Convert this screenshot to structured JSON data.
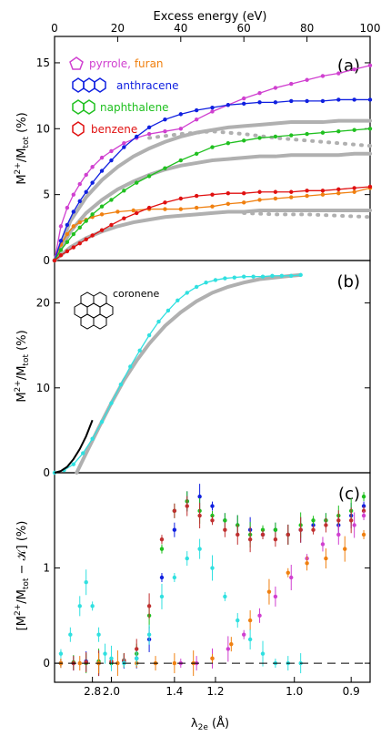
{
  "chart_data": [
    {
      "panel": "a",
      "type": "line",
      "tag": "(a)",
      "top_axis_label": "Excess energy (eV)",
      "top_axis_ticks": [
        "0",
        "20",
        "40",
        "60",
        "80",
        "100"
      ],
      "xlim": [
        0,
        100
      ],
      "ylim": [
        0,
        17
      ],
      "ylabel": "M2+/Mtot (%)",
      "y_ticks": [
        "0",
        "5",
        "10",
        "15"
      ],
      "legend": [
        {
          "label": "pyrrole, furan",
          "color": "#d040d0"
        },
        {
          "label": "anthracene",
          "color": "#1020e0"
        },
        {
          "label": "naphthalene",
          "color": "#20c020"
        },
        {
          "label": "benzene",
          "color": "#e01010"
        }
      ],
      "series": [
        {
          "name": "pyrrole, furan",
          "color": "#d040d0",
          "x": [
            0,
            2,
            4,
            6,
            8,
            10,
            12,
            15,
            18,
            22,
            26,
            30,
            35,
            40,
            45,
            50,
            55,
            60,
            65,
            70,
            75,
            80,
            85,
            90,
            95,
            100
          ],
          "y": [
            0,
            2.6,
            4.0,
            5.0,
            5.8,
            6.5,
            7.1,
            7.8,
            8.3,
            8.9,
            9.3,
            9.6,
            9.8,
            10.0,
            10.7,
            11.3,
            11.8,
            12.3,
            12.7,
            13.1,
            13.4,
            13.7,
            14.0,
            14.2,
            14.5,
            14.8
          ]
        },
        {
          "name": "pyrrole, furan (orange)",
          "color": "#f08010",
          "x": [
            0,
            2,
            4,
            6,
            8,
            10,
            12,
            15,
            20,
            25,
            30,
            35,
            40,
            45,
            50,
            55,
            60,
            65,
            70,
            75,
            80,
            85,
            90,
            95,
            100
          ],
          "y": [
            0,
            1.2,
            2.0,
            2.6,
            2.9,
            3.1,
            3.3,
            3.5,
            3.7,
            3.8,
            3.9,
            3.9,
            3.9,
            4.0,
            4.1,
            4.3,
            4.4,
            4.6,
            4.7,
            4.8,
            4.9,
            5.0,
            5.1,
            5.2,
            5.5
          ]
        },
        {
          "name": "anthracene",
          "color": "#1020e0",
          "x": [
            0,
            2,
            4,
            6,
            8,
            10,
            12,
            15,
            18,
            22,
            26,
            30,
            35,
            40,
            45,
            50,
            55,
            60,
            65,
            70,
            75,
            80,
            85,
            90,
            95,
            100
          ],
          "y": [
            0,
            1.5,
            2.7,
            3.7,
            4.5,
            5.2,
            5.9,
            6.8,
            7.6,
            8.6,
            9.4,
            10.1,
            10.7,
            11.1,
            11.4,
            11.6,
            11.8,
            11.9,
            12.0,
            12.0,
            12.1,
            12.1,
            12.1,
            12.2,
            12.2,
            12.2
          ]
        },
        {
          "name": "naphthalene",
          "color": "#20c020",
          "x": [
            0,
            2,
            4,
            6,
            8,
            10,
            12,
            15,
            18,
            22,
            26,
            30,
            35,
            40,
            45,
            50,
            55,
            60,
            65,
            70,
            75,
            80,
            85,
            90,
            95,
            100
          ],
          "y": [
            0,
            0.8,
            1.4,
            2.0,
            2.5,
            3.0,
            3.5,
            4.1,
            4.6,
            5.3,
            5.9,
            6.4,
            7.0,
            7.6,
            8.1,
            8.6,
            8.9,
            9.1,
            9.3,
            9.4,
            9.5,
            9.6,
            9.7,
            9.8,
            9.9,
            10.0
          ]
        },
        {
          "name": "benzene",
          "color": "#e01010",
          "x": [
            0,
            2,
            4,
            6,
            8,
            10,
            12,
            15,
            18,
            22,
            26,
            30,
            35,
            40,
            45,
            50,
            55,
            60,
            65,
            70,
            75,
            80,
            85,
            90,
            95,
            100
          ],
          "y": [
            0,
            0.4,
            0.7,
            1.0,
            1.3,
            1.6,
            1.9,
            2.3,
            2.7,
            3.2,
            3.6,
            4.0,
            4.4,
            4.7,
            4.9,
            5.0,
            5.1,
            5.1,
            5.2,
            5.2,
            5.2,
            5.3,
            5.3,
            5.4,
            5.5,
            5.6
          ]
        },
        {
          "name": "model anthracene",
          "color": "#aaaaaa",
          "x": [
            0,
            5,
            10,
            15,
            20,
            25,
            30,
            35,
            40,
            45,
            50,
            55,
            60,
            65,
            70,
            75,
            80,
            85,
            90,
            95,
            100
          ],
          "y": [
            0,
            3.0,
            4.8,
            6.1,
            7.1,
            7.9,
            8.5,
            9.0,
            9.4,
            9.7,
            9.9,
            10.1,
            10.2,
            10.3,
            10.4,
            10.5,
            10.5,
            10.5,
            10.6,
            10.6,
            10.6
          ]
        },
        {
          "name": "model naphthalene",
          "color": "#aaaaaa",
          "x": [
            0,
            5,
            10,
            15,
            20,
            25,
            30,
            35,
            40,
            45,
            50,
            55,
            60,
            65,
            70,
            75,
            80,
            85,
            90,
            95,
            100
          ],
          "y": [
            0,
            2.2,
            3.6,
            4.6,
            5.4,
            6.0,
            6.5,
            6.9,
            7.2,
            7.4,
            7.6,
            7.7,
            7.8,
            7.9,
            7.9,
            8.0,
            8.0,
            8.0,
            8.0,
            8.1,
            8.1
          ]
        },
        {
          "name": "model benzene",
          "color": "#aaaaaa",
          "x": [
            0,
            5,
            10,
            15,
            20,
            25,
            30,
            35,
            40,
            45,
            50,
            55,
            60,
            65,
            70,
            75,
            80,
            85,
            90,
            95,
            100
          ],
          "y": [
            0,
            1.0,
            1.7,
            2.2,
            2.6,
            2.9,
            3.1,
            3.3,
            3.4,
            3.5,
            3.6,
            3.7,
            3.7,
            3.8,
            3.8,
            3.8,
            3.8,
            3.8,
            3.8,
            3.8,
            3.8
          ]
        },
        {
          "name": "model anthracene dotted",
          "color": "#aaaaaa",
          "x": [
            30,
            40,
            50,
            60,
            70,
            80,
            90,
            100
          ],
          "y": [
            9.3,
            9.6,
            9.8,
            9.6,
            9.3,
            9.1,
            8.9,
            8.7
          ]
        },
        {
          "name": "model benzene dotted",
          "color": "#aaaaaa",
          "x": [
            60,
            70,
            80,
            90,
            100
          ],
          "y": [
            3.6,
            3.5,
            3.5,
            3.4,
            3.3
          ]
        }
      ]
    },
    {
      "panel": "b",
      "type": "line",
      "tag": "(b)",
      "xlim": [
        0,
        100
      ],
      "ylim": [
        0,
        25
      ],
      "ylabel": "M2+/Mtot (%)",
      "y_ticks": [
        "0",
        "10",
        "20"
      ],
      "molecule_label": "coronene",
      "series": [
        {
          "name": "coronene",
          "color": "#30e0e0",
          "x": [
            0,
            3,
            6,
            9,
            12,
            15,
            18,
            21,
            24,
            27,
            30,
            33,
            36,
            39,
            42,
            45,
            48,
            51,
            54,
            57,
            60,
            63,
            66,
            69,
            72,
            75,
            78
          ],
          "y": [
            0,
            0.3,
            1.0,
            2.3,
            4.0,
            6.0,
            8.2,
            10.4,
            12.5,
            14.4,
            16.2,
            17.8,
            19.1,
            20.3,
            21.2,
            21.9,
            22.4,
            22.7,
            22.9,
            23.0,
            23.1,
            23.1,
            23.1,
            23.2,
            23.2,
            23.2,
            23.3
          ]
        },
        {
          "name": "model",
          "color": "#aaaaaa",
          "x": [
            7,
            10,
            14,
            18,
            22,
            26,
            30,
            35,
            40,
            45,
            50,
            55,
            60,
            65,
            70,
            75,
            78
          ],
          "y": [
            0,
            2.3,
            5.3,
            8.2,
            10.9,
            13.2,
            15.2,
            17.3,
            18.9,
            20.2,
            21.2,
            21.9,
            22.4,
            22.8,
            23.0,
            23.2,
            23.3
          ]
        },
        {
          "name": "fit",
          "color": "#000000",
          "x": [
            0,
            2,
            4,
            6,
            8,
            10,
            12
          ],
          "y": [
            0,
            0.2,
            0.7,
            1.6,
            2.8,
            4.3,
            6.2
          ]
        }
      ]
    },
    {
      "panel": "c",
      "type": "scatter",
      "tag": "(c)",
      "xlim": [
        0,
        100
      ],
      "ylim": [
        -0.2,
        2.0
      ],
      "ylabel": "[M2+/Mtot − 𝒦] (%)",
      "y_ticks": [
        "0",
        "1"
      ],
      "xlabel": "λ2e (Å)",
      "x_ticks": [
        "2.8",
        "2.0",
        "1.4",
        "1.2",
        "1.0",
        "0.9"
      ],
      "series": [
        {
          "name": "anthracene",
          "color": "#1020e0",
          "x": [
            2,
            6,
            10,
            14,
            18,
            22,
            26,
            30,
            34,
            38,
            42,
            46,
            50,
            54,
            58,
            62,
            66,
            70,
            74,
            78,
            82,
            86,
            90,
            94,
            98
          ],
          "y": [
            0.0,
            0.0,
            0.02,
            0.0,
            0.01,
            0.02,
            0.05,
            0.25,
            0.9,
            1.4,
            1.7,
            1.75,
            1.65,
            1.5,
            1.45,
            1.4,
            1.35,
            1.4,
            1.35,
            1.4,
            1.45,
            1.5,
            1.45,
            1.55,
            1.65
          ]
        },
        {
          "name": "naphthalene",
          "color": "#20c020",
          "x": [
            2,
            6,
            10,
            14,
            18,
            22,
            26,
            30,
            34,
            38,
            42,
            46,
            50,
            54,
            58,
            62,
            66,
            70,
            74,
            78,
            82,
            86,
            90,
            94,
            98
          ],
          "y": [
            0.0,
            0.01,
            0.0,
            0.02,
            0.0,
            0.03,
            0.1,
            0.5,
            1.2,
            1.6,
            1.7,
            1.6,
            1.55,
            1.5,
            1.45,
            1.35,
            1.4,
            1.4,
            1.35,
            1.45,
            1.5,
            1.5,
            1.55,
            1.6,
            1.75
          ]
        },
        {
          "name": "benzene",
          "color": "#c03030",
          "x": [
            2,
            6,
            10,
            14,
            18,
            22,
            26,
            30,
            34,
            38,
            42,
            46,
            50,
            54,
            58,
            62,
            66,
            70,
            74,
            78,
            82,
            86,
            90,
            94,
            98
          ],
          "y": [
            0.0,
            0.0,
            0.01,
            0.0,
            0.02,
            0.03,
            0.15,
            0.6,
            1.3,
            1.6,
            1.65,
            1.55,
            1.5,
            1.4,
            1.35,
            1.3,
            1.35,
            1.3,
            1.35,
            1.4,
            1.4,
            1.45,
            1.5,
            1.5,
            1.6
          ]
        },
        {
          "name": "pyrrole, furan",
          "color": "#d040d0",
          "x": [
            40,
            45,
            50,
            55,
            60,
            65,
            70,
            75,
            80,
            85,
            90,
            95,
            98
          ],
          "y": [
            0.0,
            0.0,
            0.05,
            0.15,
            0.3,
            0.5,
            0.7,
            0.9,
            1.1,
            1.25,
            1.35,
            1.45,
            1.55
          ]
        },
        {
          "name": "orange",
          "color": "#f08010",
          "x": [
            2,
            8,
            14,
            20,
            26,
            32,
            38,
            44,
            50,
            56,
            62,
            68,
            74,
            80,
            86,
            92,
            98
          ],
          "y": [
            0.0,
            0.0,
            0.0,
            0.0,
            0.0,
            0.0,
            0.0,
            0.0,
            0.05,
            0.2,
            0.45,
            0.75,
            0.95,
            1.05,
            1.1,
            1.2,
            1.35
          ]
        },
        {
          "name": "coronene",
          "color": "#30e0e0",
          "x": [
            2,
            5,
            8,
            10,
            12,
            14,
            16,
            18,
            22,
            26,
            30,
            34,
            38,
            42,
            46,
            50,
            54,
            58,
            62,
            66,
            70,
            74,
            78
          ],
          "y": [
            0.1,
            0.3,
            0.6,
            0.85,
            0.6,
            0.3,
            0.1,
            0.05,
            0.0,
            0.05,
            0.3,
            0.7,
            0.9,
            1.1,
            1.2,
            1.0,
            0.7,
            0.45,
            0.25,
            0.1,
            0.0,
            0.0,
            0.0
          ]
        }
      ]
    }
  ]
}
